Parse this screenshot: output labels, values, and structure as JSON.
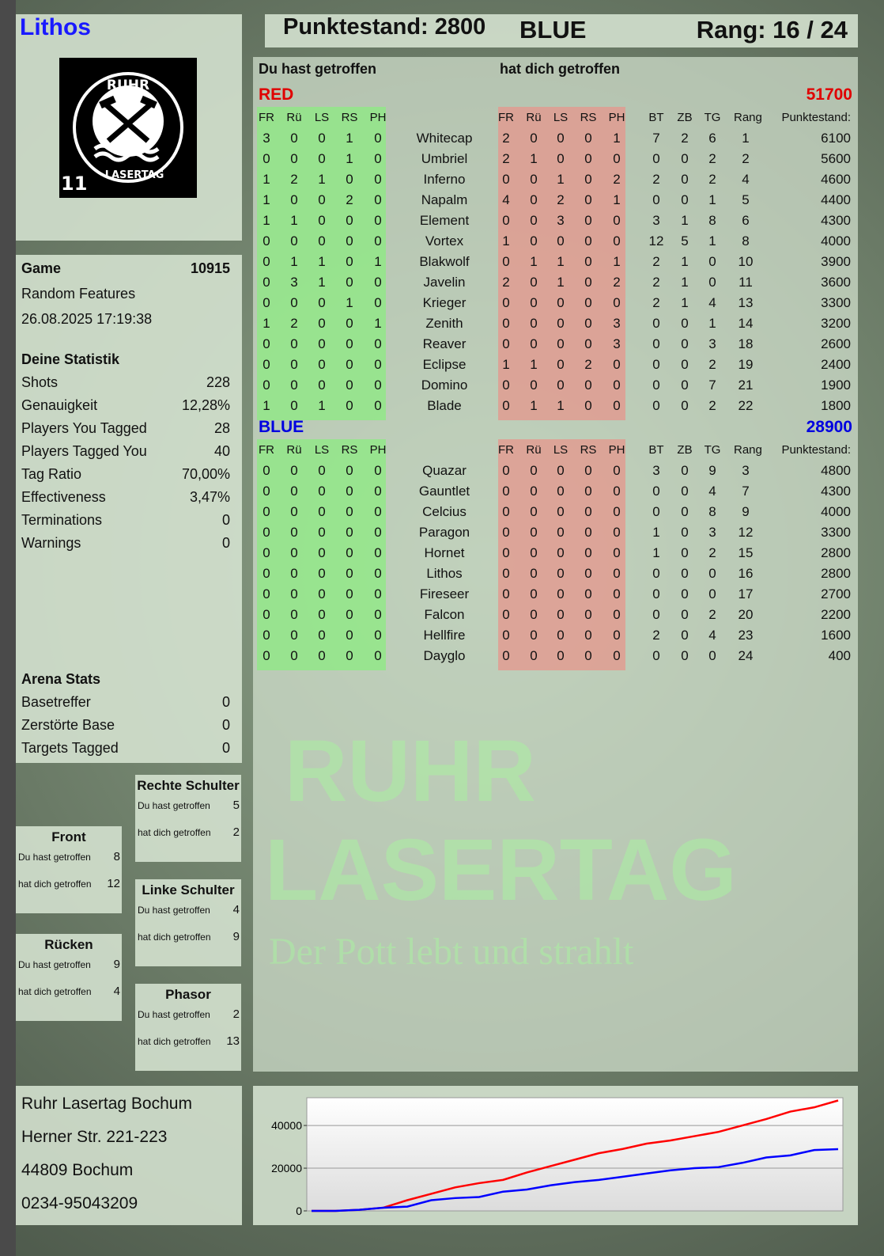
{
  "header": {
    "player": "Lithos",
    "score_label": "Punktestand: 2800",
    "team": "BLUE",
    "rank_label": "Rang: 16 / 24"
  },
  "logo": {
    "text_top": "RUHR",
    "text_bottom": "LASERTAG",
    "number": "11",
    "icon": "hammer-pick-icon"
  },
  "game": {
    "label": "Game",
    "id": "10915",
    "mode": "Random Features",
    "datetime": "26.08.2025 17:19:38"
  },
  "stats": {
    "title": "Deine Statistik",
    "rows": [
      [
        "Shots",
        "228"
      ],
      [
        "Genauigkeit",
        "12,28%"
      ],
      [
        "Players You Tagged",
        "28"
      ],
      [
        "Players Tagged You",
        "40"
      ],
      [
        "Tag Ratio",
        "70,00%"
      ],
      [
        "Effectiveness",
        "3,47%"
      ],
      [
        "Terminations",
        "0"
      ],
      [
        "Warnings",
        "0"
      ]
    ]
  },
  "arena": {
    "title": "Arena Stats",
    "rows": [
      [
        "Basetreffer",
        "0"
      ],
      [
        "Zerstörte Base",
        "0"
      ],
      [
        "Targets Tagged",
        "0"
      ]
    ]
  },
  "hits": [
    {
      "title": "Rechte Schulter",
      "you_label": "Du hast getroffen",
      "you": "5",
      "them_label": "hat dich getroffen",
      "them": "2"
    },
    {
      "title": "Front",
      "you_label": "Du hast getroffen",
      "you": "8",
      "them_label": "hat dich getroffen",
      "them": "12"
    },
    {
      "title": "Linke Schulter",
      "you_label": "Du hast getroffen",
      "you": "4",
      "them_label": "hat dich getroffen",
      "them": "9"
    },
    {
      "title": "Rücken",
      "you_label": "Du hast getroffen",
      "you": "9",
      "them_label": "hat dich getroffen",
      "them": "4"
    },
    {
      "title": "Phasor",
      "you_label": "Du hast getroffen",
      "you": "2",
      "them_label": "hat dich getroffen",
      "them": "13"
    }
  ],
  "address": [
    "Ruhr Lasertag Bochum",
    "Herner Str. 221-223",
    "44809 Bochum",
    "0234-95043209"
  ],
  "watermark": {
    "line1": "RUHR",
    "line2": "LASERTAG",
    "slogan": "Der Pott lebt und strahlt"
  },
  "table": {
    "you_hit": "Du hast getroffen",
    "hit_you": "hat dich getroffen",
    "columns": [
      "FR",
      "Rü",
      "LS",
      "RS",
      "PH",
      "FR",
      "Rü",
      "LS",
      "RS",
      "PH",
      "BT",
      "ZB",
      "TG",
      "Rang",
      "Punktestand:"
    ],
    "teams": [
      {
        "name": "RED",
        "total": "51700",
        "color": "#e00000",
        "players": [
          [
            "Whitecap",
            3,
            0,
            0,
            1,
            0,
            2,
            0,
            0,
            0,
            1,
            7,
            2,
            6,
            1,
            6100
          ],
          [
            "Umbriel",
            0,
            0,
            0,
            1,
            0,
            2,
            1,
            0,
            0,
            0,
            0,
            0,
            2,
            2,
            5600
          ],
          [
            "Inferno",
            1,
            2,
            1,
            0,
            0,
            0,
            0,
            1,
            0,
            2,
            2,
            0,
            2,
            4,
            4600
          ],
          [
            "Napalm",
            1,
            0,
            0,
            2,
            0,
            4,
            0,
            2,
            0,
            1,
            0,
            0,
            1,
            5,
            4400
          ],
          [
            "Element",
            1,
            1,
            0,
            0,
            0,
            0,
            0,
            3,
            0,
            0,
            3,
            1,
            8,
            6,
            4300
          ],
          [
            "Vortex",
            0,
            0,
            0,
            0,
            0,
            1,
            0,
            0,
            0,
            0,
            12,
            5,
            1,
            8,
            4000
          ],
          [
            "Blakwolf",
            0,
            1,
            1,
            0,
            1,
            0,
            1,
            1,
            0,
            1,
            2,
            1,
            0,
            10,
            3900
          ],
          [
            "Javelin",
            0,
            3,
            1,
            0,
            0,
            2,
            0,
            1,
            0,
            2,
            2,
            1,
            0,
            11,
            3600
          ],
          [
            "Krieger",
            0,
            0,
            0,
            1,
            0,
            0,
            0,
            0,
            0,
            0,
            2,
            1,
            4,
            13,
            3300
          ],
          [
            "Zenith",
            1,
            2,
            0,
            0,
            1,
            0,
            0,
            0,
            0,
            3,
            0,
            0,
            1,
            14,
            3200
          ],
          [
            "Reaver",
            0,
            0,
            0,
            0,
            0,
            0,
            0,
            0,
            0,
            3,
            0,
            0,
            3,
            18,
            2600
          ],
          [
            "Eclipse",
            0,
            0,
            0,
            0,
            0,
            1,
            1,
            0,
            2,
            0,
            0,
            0,
            2,
            19,
            2400
          ],
          [
            "Domino",
            0,
            0,
            0,
            0,
            0,
            0,
            0,
            0,
            0,
            0,
            0,
            0,
            7,
            21,
            1900
          ],
          [
            "Blade",
            1,
            0,
            1,
            0,
            0,
            0,
            1,
            1,
            0,
            0,
            0,
            0,
            2,
            22,
            1800
          ]
        ]
      },
      {
        "name": "BLUE",
        "total": "28900",
        "color": "#0000e0",
        "players": [
          [
            "Quazar",
            0,
            0,
            0,
            0,
            0,
            0,
            0,
            0,
            0,
            0,
            3,
            0,
            9,
            3,
            4800
          ],
          [
            "Gauntlet",
            0,
            0,
            0,
            0,
            0,
            0,
            0,
            0,
            0,
            0,
            0,
            0,
            4,
            7,
            4300
          ],
          [
            "Celcius",
            0,
            0,
            0,
            0,
            0,
            0,
            0,
            0,
            0,
            0,
            0,
            0,
            8,
            9,
            4000
          ],
          [
            "Paragon",
            0,
            0,
            0,
            0,
            0,
            0,
            0,
            0,
            0,
            0,
            1,
            0,
            3,
            12,
            3300
          ],
          [
            "Hornet",
            0,
            0,
            0,
            0,
            0,
            0,
            0,
            0,
            0,
            0,
            1,
            0,
            2,
            15,
            2800
          ],
          [
            "Lithos",
            0,
            0,
            0,
            0,
            0,
            0,
            0,
            0,
            0,
            0,
            0,
            0,
            0,
            16,
            2800
          ],
          [
            "Fireseer",
            0,
            0,
            0,
            0,
            0,
            0,
            0,
            0,
            0,
            0,
            0,
            0,
            0,
            17,
            2700
          ],
          [
            "Falcon",
            0,
            0,
            0,
            0,
            0,
            0,
            0,
            0,
            0,
            0,
            0,
            0,
            2,
            20,
            2200
          ],
          [
            "Hellfire",
            0,
            0,
            0,
            0,
            0,
            0,
            0,
            0,
            0,
            0,
            2,
            0,
            4,
            23,
            1600
          ],
          [
            "Dayglo",
            0,
            0,
            0,
            0,
            0,
            0,
            0,
            0,
            0,
            0,
            0,
            0,
            0,
            24,
            400
          ]
        ]
      }
    ]
  },
  "chart_data": {
    "type": "line",
    "ylim": [
      0,
      53000
    ],
    "yticks": [
      "0",
      "20000",
      "40000"
    ],
    "grid": true,
    "series": [
      {
        "color": "#ff0000",
        "values": [
          0,
          0,
          500,
          1500,
          5000,
          8000,
          11000,
          13000,
          14500,
          18000,
          21000,
          24000,
          27000,
          29000,
          31500,
          33000,
          35000,
          37000,
          40000,
          43000,
          46500,
          48500,
          51700
        ]
      },
      {
        "color": "#0000ff",
        "values": [
          0,
          0,
          500,
          1500,
          2000,
          5000,
          6000,
          6500,
          9000,
          10000,
          12000,
          13500,
          14500,
          16000,
          17500,
          19000,
          20000,
          20500,
          22500,
          25000,
          26000,
          28500,
          28900
        ]
      }
    ]
  }
}
